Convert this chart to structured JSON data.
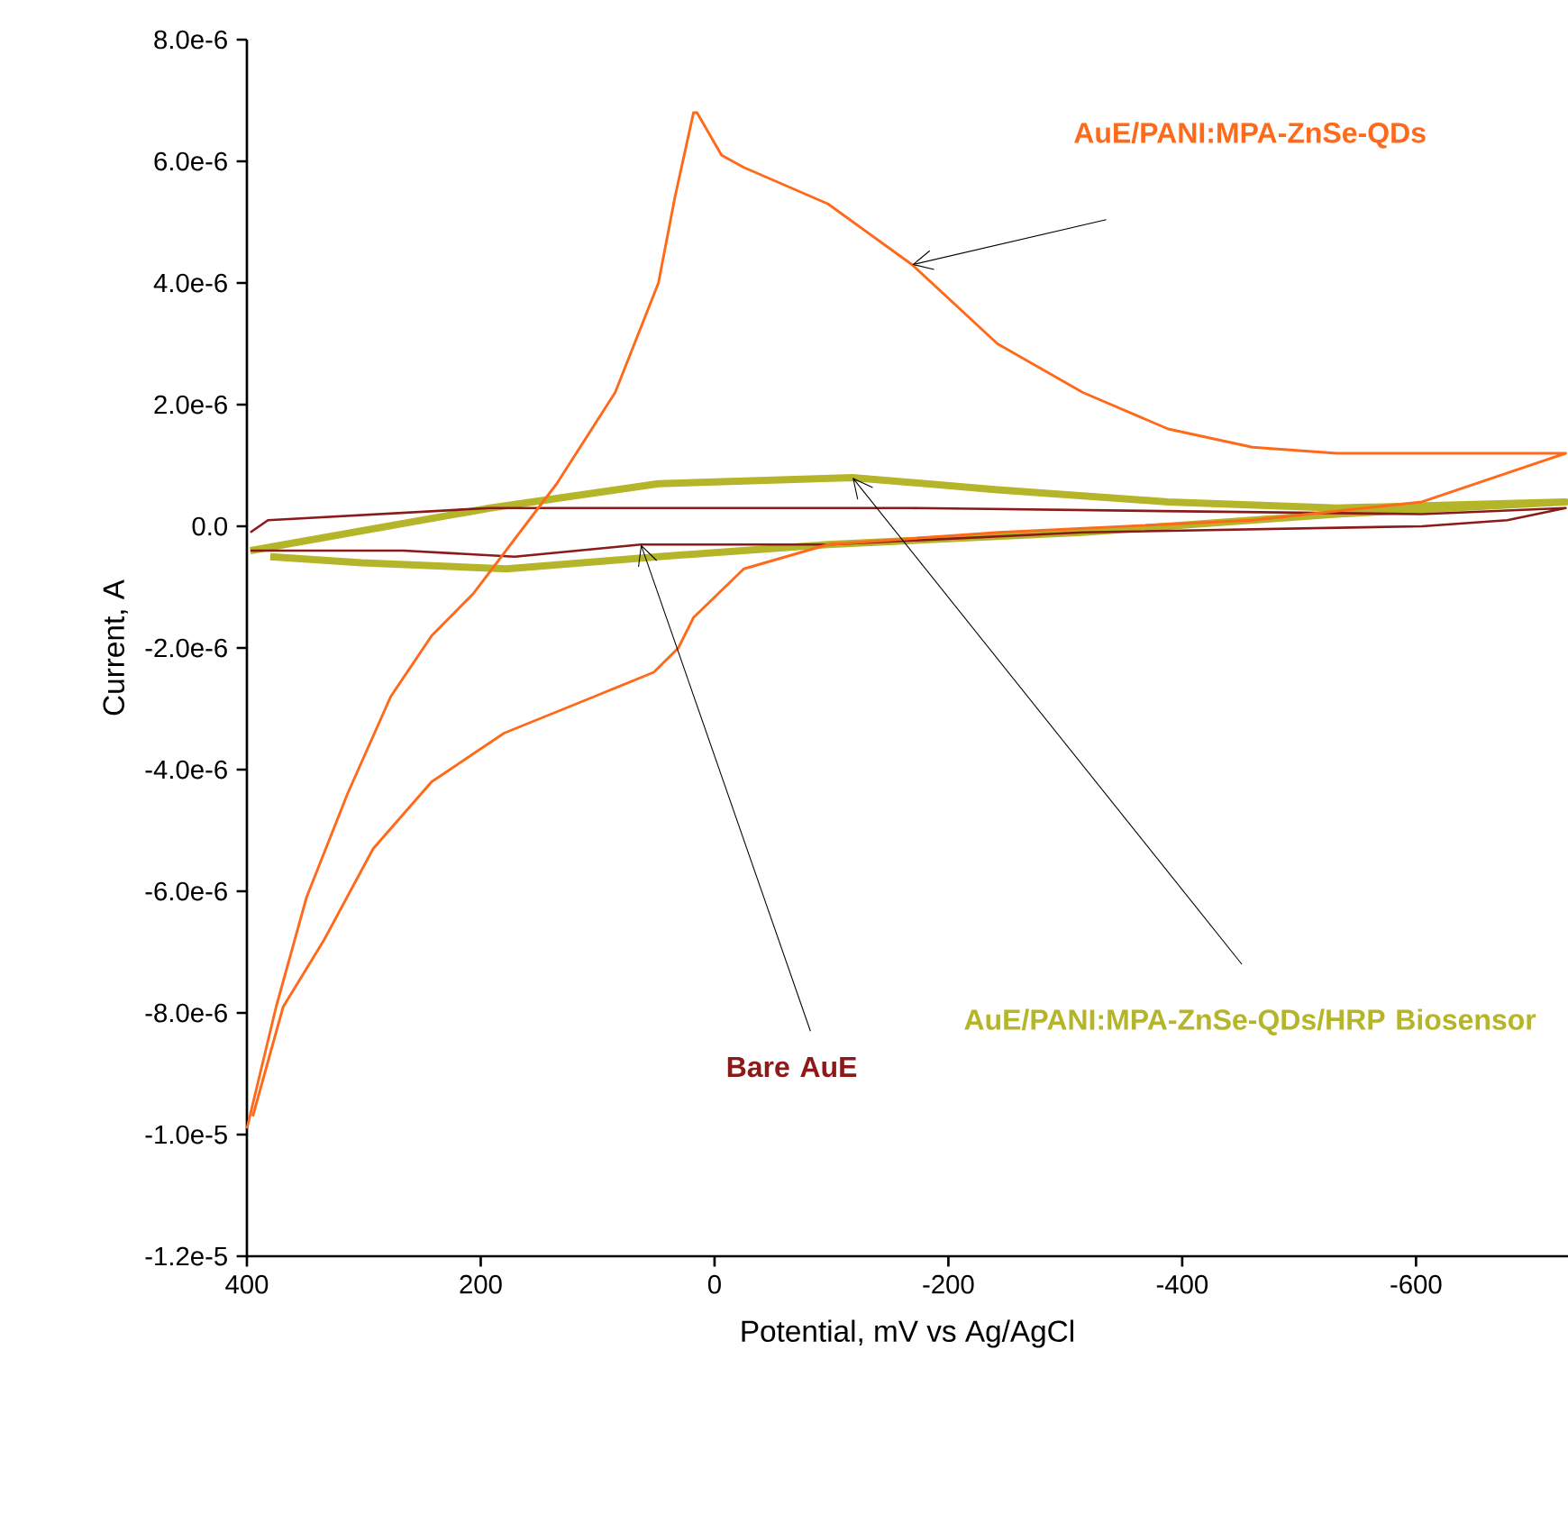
{
  "chart_data": {
    "type": "line",
    "xlabel": "Potential, mV vs Ag/AgCl",
    "ylabel": "Current, A",
    "xlim": [
      400,
      -730
    ],
    "ylim": [
      -1.2e-05,
      8e-06
    ],
    "xticks": [
      400,
      200,
      0,
      -200,
      -400,
      -600
    ],
    "yticks": [
      {
        "value": 8e-06,
        "label": "8.0e-6"
      },
      {
        "value": 6e-06,
        "label": "6.0e-6"
      },
      {
        "value": 4e-06,
        "label": "4.0e-6"
      },
      {
        "value": 2e-06,
        "label": "2.0e-6"
      },
      {
        "value": 0,
        "label": "0.0"
      },
      {
        "value": -2e-06,
        "label": "-2.0e-6"
      },
      {
        "value": -4e-06,
        "label": "-4.0e-6"
      },
      {
        "value": -6e-06,
        "label": "-6.0e-6"
      },
      {
        "value": -8e-06,
        "label": "-8.0e-6"
      },
      {
        "value": -1e-05,
        "label": "-1.0e-5"
      },
      {
        "value": -1.2e-05,
        "label": "-1.2e-5"
      }
    ],
    "grid": false,
    "legend": false,
    "series": [
      {
        "name": "AuE/PANI:MPA-ZnSe-QDs/HRP Biosensor",
        "color": "#b5b52a",
        "x": [
          397,
          192,
          48,
          -118,
          -242,
          -388,
          -532,
          -728,
          -532,
          -315,
          -97,
          48,
          178,
          302,
          380
        ],
        "values": [
          -4e-07,
          3e-07,
          7e-07,
          8e-07,
          6e-07,
          4e-07,
          3e-07,
          4e-07,
          2e-07,
          -1e-07,
          -3e-07,
          -5e-07,
          -7e-07,
          -6e-07,
          -5e-07
        ]
      },
      {
        "name": "Bare AuE",
        "color": "#8b1a1a",
        "x": [
          397,
          382,
          192,
          -169,
          -605,
          -728,
          -678,
          -605,
          -315,
          -97,
          63,
          171,
          266,
          397
        ],
        "values": [
          -1e-07,
          1e-07,
          3e-07,
          3e-07,
          2e-07,
          3e-07,
          1e-07,
          0,
          -1e-07,
          -3e-07,
          -3e-07,
          -5e-07,
          -4e-07,
          -4e-07
        ]
      },
      {
        "name": "AuE/PANI:MPA-ZnSe-QDs",
        "color": "#ff6a1a",
        "x": [
          400,
          375,
          349,
          314,
          277,
          242,
          206,
          135,
          85,
          48,
          34,
          18,
          15,
          -6,
          -25,
          -97,
          -169,
          -242,
          -315,
          -388,
          -460,
          -532,
          -728,
          -605,
          -460,
          -243,
          -97,
          -25,
          18,
          31,
          52,
          103,
          180,
          242,
          292,
          334,
          369,
          395
        ],
        "values": [
          -9.9e-06,
          -7.9e-06,
          -6.1e-06,
          -4.4e-06,
          -2.8e-06,
          -1.8e-06,
          -1.1e-06,
          7e-07,
          2.2e-06,
          4e-06,
          5.4e-06,
          6.8e-06,
          6.8e-06,
          6.1e-06,
          5.9e-06,
          5.3e-06,
          4.3e-06,
          3e-06,
          2.2e-06,
          1.6e-06,
          1.3e-06,
          1.2e-06,
          1.2e-06,
          4e-07,
          1e-07,
          -1e-07,
          -3e-07,
          -7e-07,
          -1.5e-06,
          -2e-06,
          -2.4e-06,
          -2.8e-06,
          -3.4e-06,
          -4.2e-06,
          -5.3e-06,
          -6.8e-06,
          -7.9e-06,
          -9.7e-06
        ]
      }
    ]
  }
}
